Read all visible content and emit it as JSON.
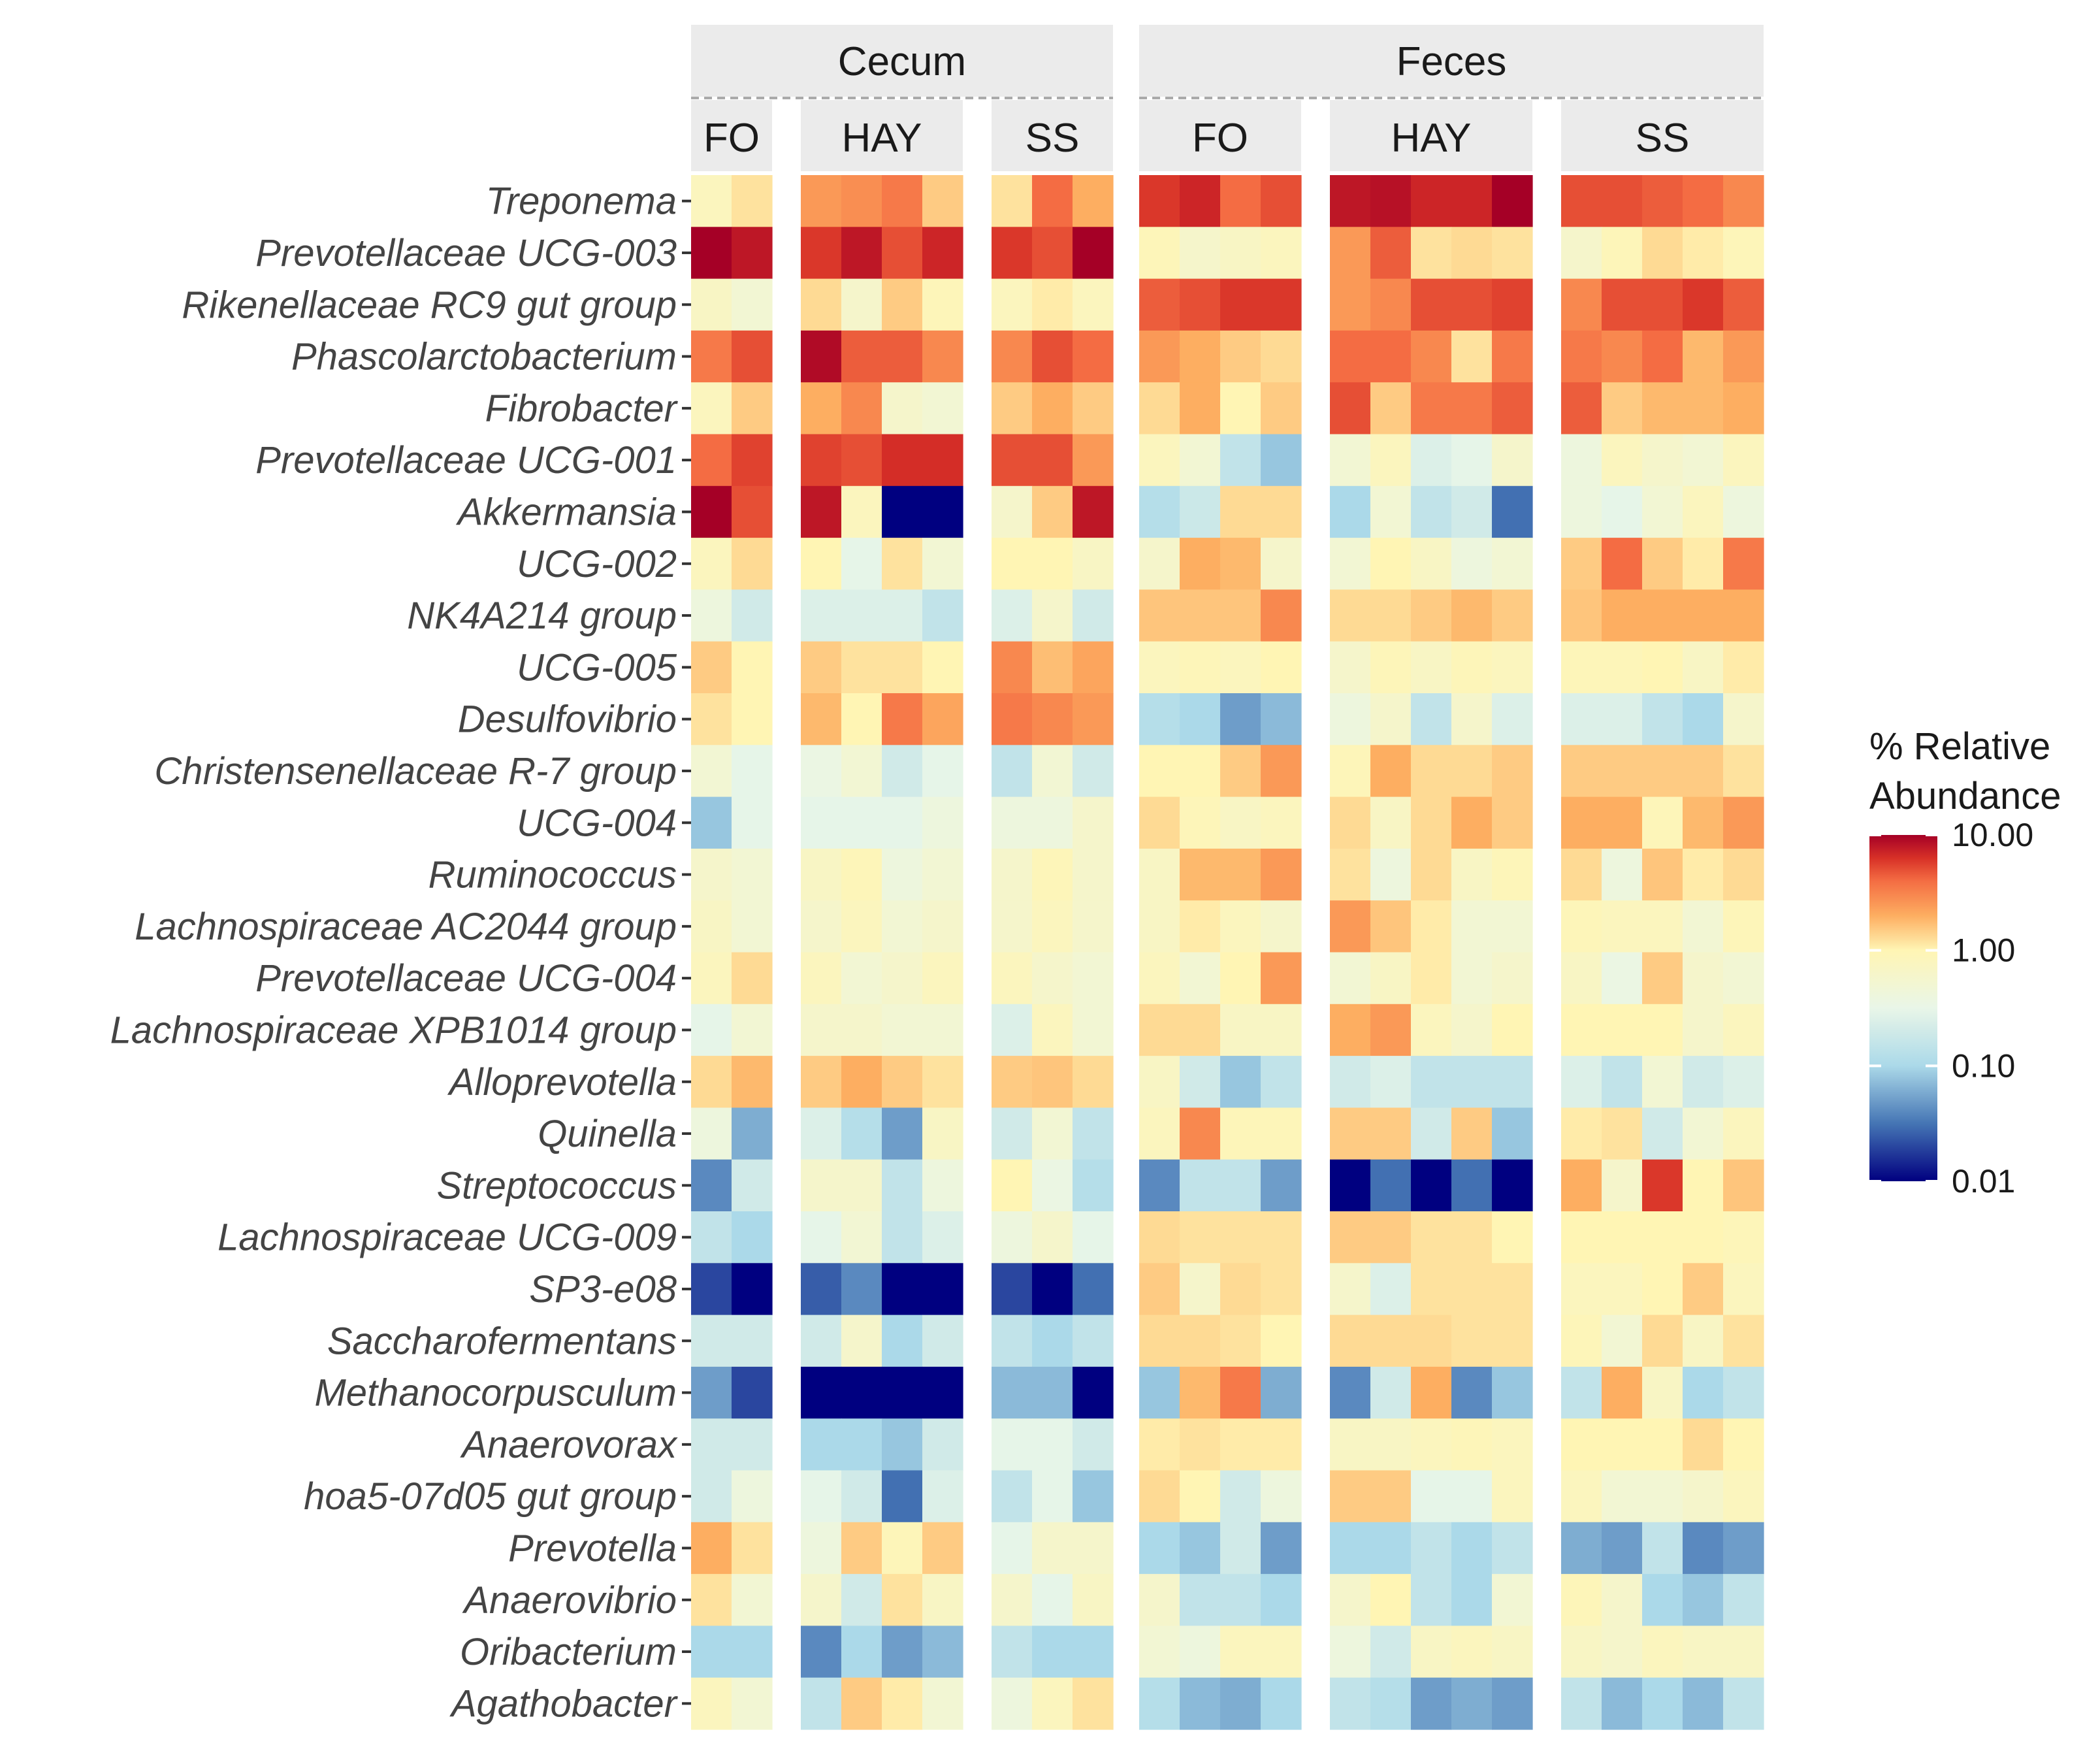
{
  "chart_data": {
    "type": "heatmap",
    "title": "",
    "scale": "log10",
    "legend": {
      "title_lines": [
        "% Relative",
        "Abundance"
      ],
      "ticks": [
        {
          "value": 10,
          "label": "10.00"
        },
        {
          "value": 1,
          "label": "1.00"
        },
        {
          "value": 0.1,
          "label": "0.10"
        },
        {
          "value": 0.01,
          "label": "0.01"
        }
      ],
      "range": [
        0.01,
        10
      ],
      "colors": {
        "high": "#a50026",
        "mid_high": "#f46d43",
        "mid": "#ffffbf",
        "mid_low": "#74add1",
        "low": "#000080"
      }
    },
    "facets": [
      {
        "name": "Cecum",
        "groups": [
          {
            "name": "FO",
            "n": 2
          },
          {
            "name": "HAY",
            "n": 4
          },
          {
            "name": "SS",
            "n": 3
          }
        ]
      },
      {
        "name": "Feces",
        "groups": [
          {
            "name": "FO",
            "n": 4
          },
          {
            "name": "HAY",
            "n": 5
          },
          {
            "name": "SS",
            "n": 5
          }
        ]
      }
    ],
    "rows": [
      {
        "taxon": "Treponema",
        "values": [
          0.8,
          1.2,
          2.5,
          2.8,
          3.5,
          1.5,
          1.2,
          4,
          2,
          6,
          7,
          4,
          5,
          8,
          8.5,
          7,
          7,
          12,
          5,
          5,
          4.5,
          4,
          3
        ]
      },
      {
        "taxon": "Prevotellaceae UCG-003",
        "values": [
          12,
          8,
          6,
          8,
          5,
          7,
          6,
          5,
          10,
          0.9,
          0.6,
          0.7,
          0.8,
          2.5,
          4.5,
          1.2,
          1.3,
          1.2,
          0.6,
          0.9,
          1.3,
          1.1,
          0.9
        ]
      },
      {
        "taxon": "Rikenellaceae RC9 gut group",
        "values": [
          0.7,
          0.5,
          1.3,
          0.6,
          1.5,
          0.9,
          0.8,
          1.1,
          0.8,
          4.5,
          5,
          6,
          6,
          2.5,
          3,
          5,
          5,
          5.5,
          3,
          5,
          5,
          6,
          4.5
        ]
      },
      {
        "taxon": "Phascolarctobacterium",
        "values": [
          3.5,
          5,
          9,
          4.5,
          4.5,
          3,
          3,
          5,
          4,
          2.5,
          2,
          1.5,
          1.3,
          4,
          4,
          3,
          1.2,
          3.5,
          3.5,
          3,
          4,
          1.8,
          2.5
        ]
      },
      {
        "taxon": "Fibrobacter",
        "values": [
          0.8,
          1.5,
          2,
          3,
          0.6,
          0.5,
          1.5,
          2,
          1.5,
          1.3,
          2,
          1,
          1.5,
          5,
          1.5,
          3.5,
          3.5,
          4.5,
          4.5,
          1.5,
          1.8,
          1.8,
          2
        ]
      },
      {
        "taxon": "Prevotellaceae UCG-001",
        "values": [
          4,
          5.5,
          5.5,
          5,
          6.5,
          6.5,
          5,
          5,
          2.5,
          0.8,
          0.5,
          0.15,
          0.08,
          0.5,
          0.8,
          0.25,
          0.3,
          0.6,
          0.4,
          0.8,
          0.6,
          0.5,
          0.8
        ]
      },
      {
        "taxon": "Akkermansia",
        "values": [
          12,
          5,
          8,
          0.8,
          0.01,
          0.01,
          0.6,
          1.5,
          8,
          0.12,
          0.18,
          1.3,
          1.3,
          0.1,
          0.5,
          0.15,
          0.2,
          0.03,
          0.4,
          0.3,
          0.5,
          0.8,
          0.4
        ]
      },
      {
        "taxon": "UCG-002",
        "values": [
          0.8,
          1.3,
          1,
          0.3,
          1.2,
          0.5,
          1,
          1,
          0.7,
          0.6,
          2,
          1.8,
          0.6,
          0.5,
          1,
          0.7,
          0.4,
          0.5,
          1.5,
          4,
          1.5,
          1.1,
          3.5
        ]
      },
      {
        "taxon": "NK4A214 group",
        "values": [
          0.4,
          0.2,
          0.25,
          0.25,
          0.25,
          0.15,
          0.25,
          0.6,
          0.2,
          1.6,
          1.6,
          1.6,
          3,
          1.3,
          1.3,
          1.5,
          1.8,
          1.5,
          1.6,
          2,
          2,
          2,
          2
        ]
      },
      {
        "taxon": "UCG-005",
        "values": [
          1.5,
          1,
          1.5,
          1.2,
          1.2,
          1,
          3,
          1.7,
          2.2,
          0.8,
          0.9,
          0.8,
          1,
          0.6,
          0.9,
          0.7,
          0.9,
          0.8,
          0.9,
          0.9,
          1,
          0.7,
          1.1
        ]
      },
      {
        "taxon": "Desulfovibrio",
        "values": [
          1.2,
          1,
          1.8,
          1,
          3.5,
          2.2,
          3.5,
          3,
          2.5,
          0.12,
          0.1,
          0.05,
          0.07,
          0.4,
          0.6,
          0.15,
          0.6,
          0.25,
          0.25,
          0.25,
          0.15,
          0.1,
          0.6
        ]
      },
      {
        "taxon": "Christensenellaceae R-7 group",
        "values": [
          0.5,
          0.3,
          0.35,
          0.5,
          0.2,
          0.3,
          0.15,
          0.5,
          0.2,
          1,
          1,
          1.5,
          2.5,
          0.9,
          2,
          1.3,
          1.3,
          1.5,
          1.5,
          1.5,
          1.5,
          1.5,
          1.2
        ]
      },
      {
        "taxon": "UCG-004",
        "values": [
          0.08,
          0.3,
          0.3,
          0.3,
          0.3,
          0.4,
          0.4,
          0.4,
          0.6,
          1.3,
          0.9,
          0.7,
          0.8,
          1.3,
          0.7,
          1.3,
          2,
          1.5,
          2,
          2,
          0.9,
          1.8,
          2.5
        ]
      },
      {
        "taxon": "Ruminococcus",
        "values": [
          0.6,
          0.5,
          0.7,
          0.9,
          0.4,
          0.5,
          0.6,
          0.9,
          0.6,
          0.7,
          1.8,
          1.8,
          2.5,
          1.2,
          0.4,
          1.3,
          0.7,
          0.9,
          1.3,
          0.4,
          1.6,
          1.1,
          1.3
        ]
      },
      {
        "taxon": "Lachnospiraceae AC2044 group",
        "values": [
          0.7,
          0.5,
          0.6,
          0.8,
          0.5,
          0.6,
          0.6,
          0.8,
          0.6,
          0.7,
          1.1,
          0.8,
          0.6,
          2.5,
          1.6,
          1.1,
          0.5,
          0.5,
          0.9,
          0.8,
          0.8,
          0.5,
          0.9
        ]
      },
      {
        "taxon": "Prevotellaceae UCG-004",
        "values": [
          0.8,
          1.3,
          0.8,
          0.5,
          0.6,
          0.8,
          0.8,
          0.6,
          0.5,
          0.8,
          0.5,
          1,
          2.5,
          0.5,
          0.7,
          1.1,
          0.5,
          0.6,
          0.7,
          0.35,
          1.5,
          0.6,
          0.5
        ]
      },
      {
        "taxon": "Lachnospiraceae XPB1014 group",
        "values": [
          0.3,
          0.5,
          0.6,
          0.6,
          0.5,
          0.5,
          0.25,
          0.8,
          0.5,
          1.3,
          1.3,
          0.7,
          0.7,
          2,
          2.5,
          0.8,
          0.6,
          1,
          1,
          1,
          1,
          0.6,
          0.8
        ]
      },
      {
        "taxon": "Alloprevotella",
        "values": [
          1.3,
          1.8,
          1.5,
          2,
          1.5,
          1.2,
          1.5,
          1.6,
          1.3,
          0.7,
          0.2,
          0.08,
          0.15,
          0.2,
          0.25,
          0.15,
          0.15,
          0.15,
          0.25,
          0.15,
          0.5,
          0.2,
          0.25
        ]
      },
      {
        "taxon": "Quinella",
        "values": [
          0.4,
          0.06,
          0.25,
          0.12,
          0.05,
          0.7,
          0.2,
          0.5,
          0.15,
          0.8,
          3,
          0.9,
          0.9,
          1.5,
          1.5,
          0.2,
          1.5,
          0.08,
          1.1,
          1.2,
          0.2,
          0.5,
          0.8
        ]
      },
      {
        "taxon": "Streptococcus",
        "values": [
          0.04,
          0.2,
          0.6,
          0.6,
          0.15,
          0.4,
          1,
          0.35,
          0.12,
          0.04,
          0.15,
          0.15,
          0.05,
          0.01,
          0.03,
          0.01,
          0.03,
          0.01,
          2,
          0.6,
          6,
          1,
          1.6
        ]
      },
      {
        "taxon": "Lachnospiraceae UCG-009",
        "values": [
          0.15,
          0.1,
          0.3,
          0.5,
          0.15,
          0.25,
          0.4,
          0.6,
          0.3,
          1.3,
          1.2,
          1.2,
          1.2,
          1.5,
          1.5,
          1.2,
          1.2,
          1,
          1,
          1,
          1,
          1,
          0.9
        ]
      },
      {
        "taxon": "SP3-e08",
        "values": [
          0.02,
          0.01,
          0.025,
          0.04,
          0.01,
          0.01,
          0.02,
          0.01,
          0.03,
          1.5,
          0.6,
          1.3,
          1.2,
          0.6,
          0.25,
          1.2,
          1.2,
          1.2,
          0.8,
          0.8,
          1,
          1.5,
          0.8
        ]
      },
      {
        "taxon": "Saccharofermentans",
        "values": [
          0.2,
          0.2,
          0.2,
          0.6,
          0.1,
          0.2,
          0.15,
          0.1,
          0.15,
          1.3,
          1.3,
          1.2,
          1,
          1.3,
          1.3,
          1.3,
          1.2,
          1.2,
          0.9,
          0.5,
          1.3,
          0.7,
          1.2
        ]
      },
      {
        "taxon": "Methanocorpusculum",
        "values": [
          0.05,
          0.02,
          0.01,
          0.01,
          0.01,
          0.01,
          0.07,
          0.07,
          0.01,
          0.08,
          1.8,
          3.5,
          0.06,
          0.04,
          0.2,
          2,
          0.04,
          0.08,
          0.15,
          2,
          0.7,
          0.1,
          0.15
        ]
      },
      {
        "taxon": "Anaerovorax",
        "values": [
          0.2,
          0.2,
          0.1,
          0.1,
          0.08,
          0.2,
          0.3,
          0.3,
          0.2,
          1.1,
          1.2,
          1.1,
          1.1,
          0.7,
          0.7,
          0.8,
          0.9,
          0.8,
          1,
          1,
          1,
          1.3,
          1
        ]
      },
      {
        "taxon": "hoa5-07d05 gut group",
        "values": [
          0.2,
          0.4,
          0.3,
          0.2,
          0.03,
          0.25,
          0.15,
          0.3,
          0.08,
          1.3,
          1,
          0.2,
          0.4,
          1.5,
          1.5,
          0.3,
          0.3,
          0.8,
          0.8,
          0.5,
          0.5,
          0.6,
          0.8
        ]
      },
      {
        "taxon": "Prevotella",
        "values": [
          2,
          1.2,
          0.4,
          1.5,
          0.9,
          1.5,
          0.3,
          0.6,
          0.6,
          0.1,
          0.08,
          0.2,
          0.05,
          0.1,
          0.1,
          0.15,
          0.1,
          0.15,
          0.06,
          0.05,
          0.15,
          0.04,
          0.05
        ]
      },
      {
        "taxon": "Anaerovibrio",
        "values": [
          1.2,
          0.5,
          0.6,
          0.2,
          1.2,
          0.7,
          0.6,
          0.3,
          0.7,
          0.6,
          0.15,
          0.15,
          0.1,
          0.6,
          1,
          0.15,
          0.1,
          0.5,
          0.9,
          0.6,
          0.1,
          0.08,
          0.15
        ]
      },
      {
        "taxon": "Oribacterium",
        "values": [
          0.1,
          0.1,
          0.04,
          0.1,
          0.05,
          0.07,
          0.15,
          0.1,
          0.1,
          0.5,
          0.4,
          0.8,
          0.8,
          0.4,
          0.2,
          0.7,
          0.8,
          0.7,
          0.7,
          0.6,
          0.8,
          0.7,
          0.7
        ]
      },
      {
        "taxon": "Agathobacter",
        "values": [
          0.8,
          0.5,
          0.15,
          1.5,
          1.1,
          0.5,
          0.4,
          0.8,
          1.2,
          0.12,
          0.07,
          0.06,
          0.1,
          0.15,
          0.12,
          0.05,
          0.06,
          0.05,
          0.15,
          0.07,
          0.1,
          0.07,
          0.15
        ]
      }
    ]
  }
}
